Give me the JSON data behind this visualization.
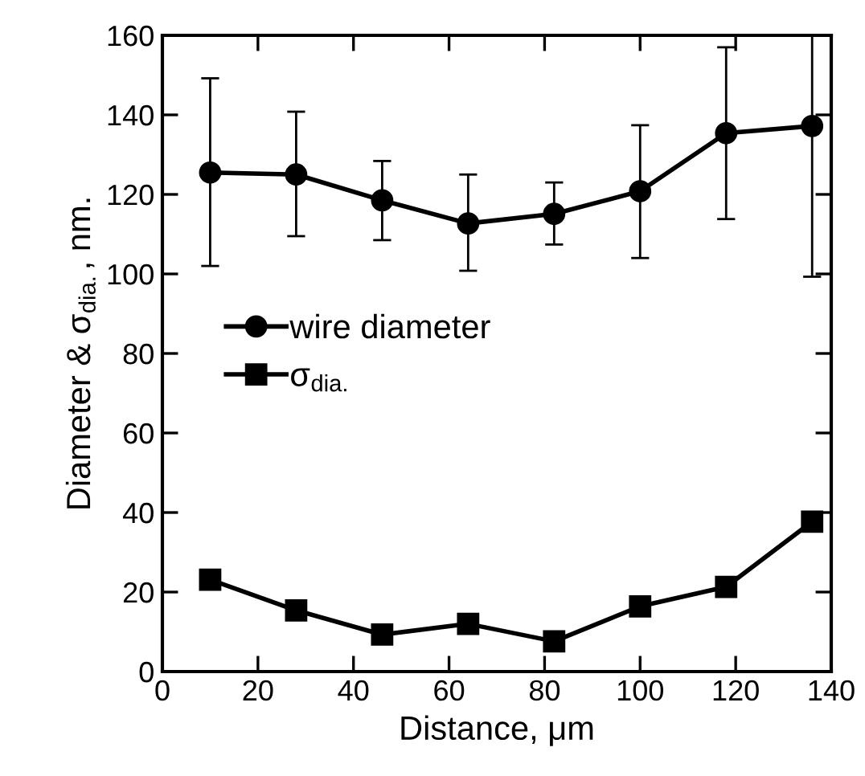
{
  "chart_data": {
    "type": "line",
    "xlabel": "Distance, μm",
    "ylabel": "Diameter & σ$_{dia.}$, nm.",
    "x": [
      10,
      28,
      46,
      64,
      82,
      100,
      118,
      136
    ],
    "series": [
      {
        "name": "wire diameter",
        "color": "#000000",
        "marker": "circle",
        "values": [
          125.5,
          125,
          118.5,
          112.7,
          115.1,
          120.8,
          135.4,
          137.2
        ],
        "errors": [
          [
            102,
            149.2
          ],
          [
            109.5,
            140.8
          ],
          [
            108.5,
            128.4
          ],
          [
            100.8,
            125
          ],
          [
            107.4,
            123
          ],
          [
            104,
            137.4
          ],
          [
            113.8,
            157
          ],
          [
            99.3,
            160
          ]
        ]
      },
      {
        "name": "σ$_{dia.}$",
        "color": "#000000",
        "marker": "square",
        "values": [
          23.1,
          15.4,
          9.3,
          12.0,
          7.6,
          16.4,
          21.3,
          37.7
        ]
      }
    ],
    "xlim": [
      0,
      140
    ],
    "xticks": [
      0,
      20,
      40,
      60,
      80,
      100,
      120,
      140
    ],
    "ylim": [
      0,
      160
    ],
    "yticks": [
      0,
      20,
      40,
      60,
      80,
      100,
      120,
      140,
      160
    ],
    "grid": false,
    "legend": "center left",
    "line_style": "solid"
  }
}
